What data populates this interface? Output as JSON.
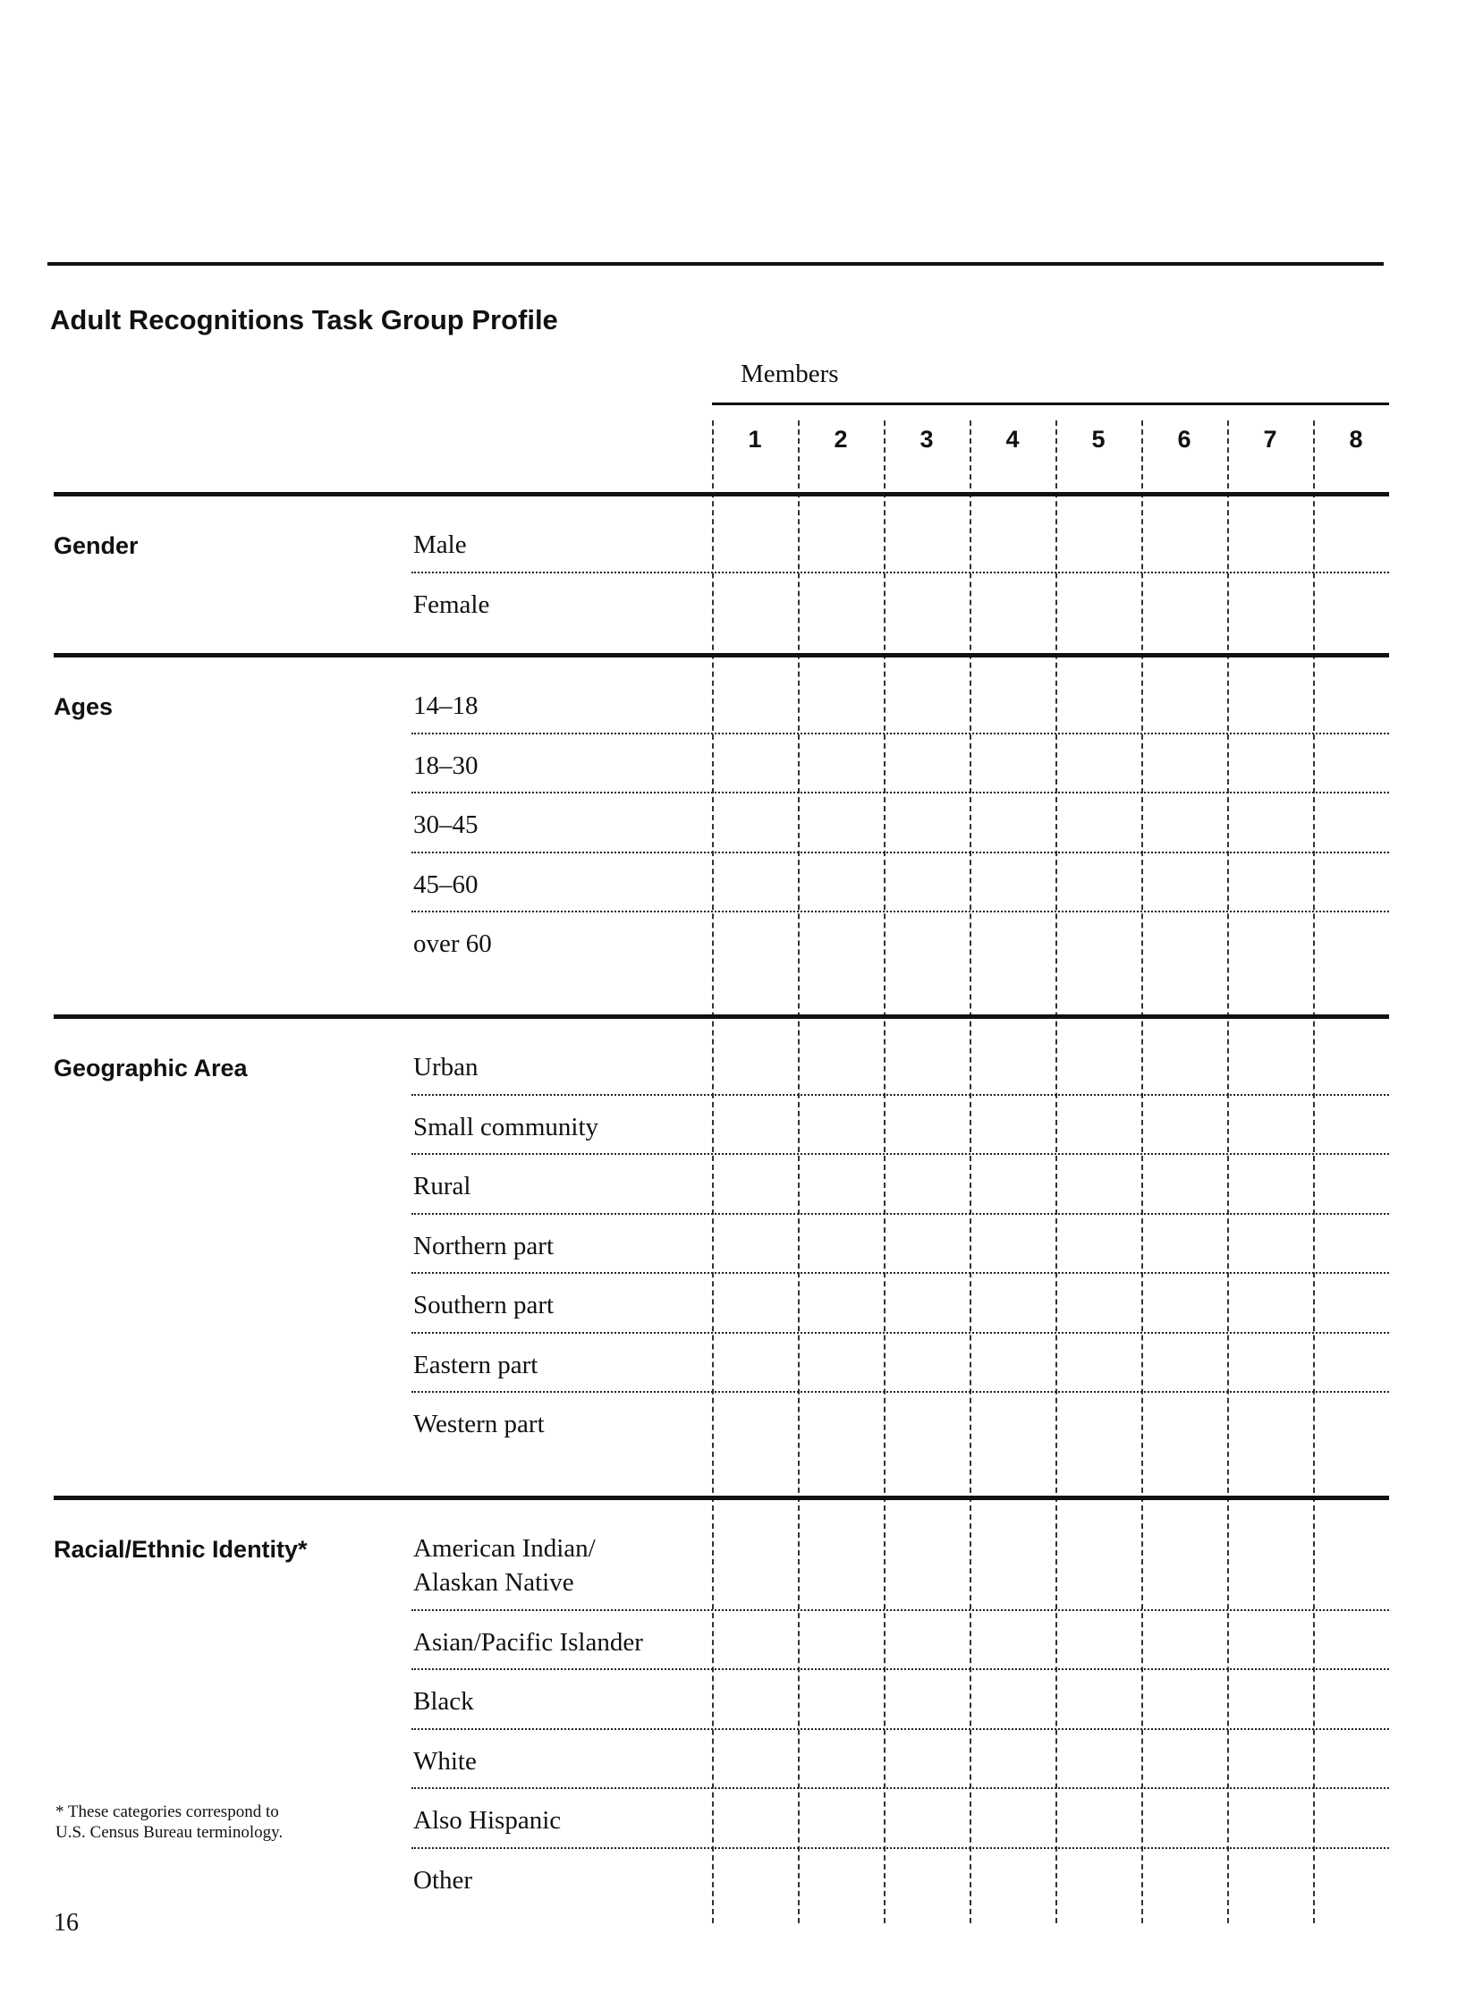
{
  "title": "Adult Recognitions Task Group Profile",
  "members_label": "Members",
  "member_columns": [
    "1",
    "2",
    "3",
    "4",
    "5",
    "6",
    "7",
    "8"
  ],
  "sections": [
    {
      "label": "Gender",
      "rows": [
        "Male",
        "Female"
      ]
    },
    {
      "label": "Ages",
      "rows": [
        "14–18",
        "18–30",
        "30–45",
        "45–60",
        "over 60"
      ]
    },
    {
      "label": "Geographic Area",
      "rows": [
        "Urban",
        "Small community",
        "Rural",
        "Northern part",
        "Southern part",
        "Eastern part",
        "Western part"
      ]
    },
    {
      "label": "Racial/Ethnic Identity*",
      "rows": [
        "American Indian/\nAlaskan Native",
        "Asian/Pacific Islander",
        "Black",
        "White",
        "Also Hispanic",
        "Other"
      ]
    }
  ],
  "footnote": "* These categories correspond to U.S. Census Bureau terminology.",
  "footnote_lines": [
    "* These categories correspond to",
    "U.S. Census Bureau terminology."
  ],
  "page_number": "16"
}
